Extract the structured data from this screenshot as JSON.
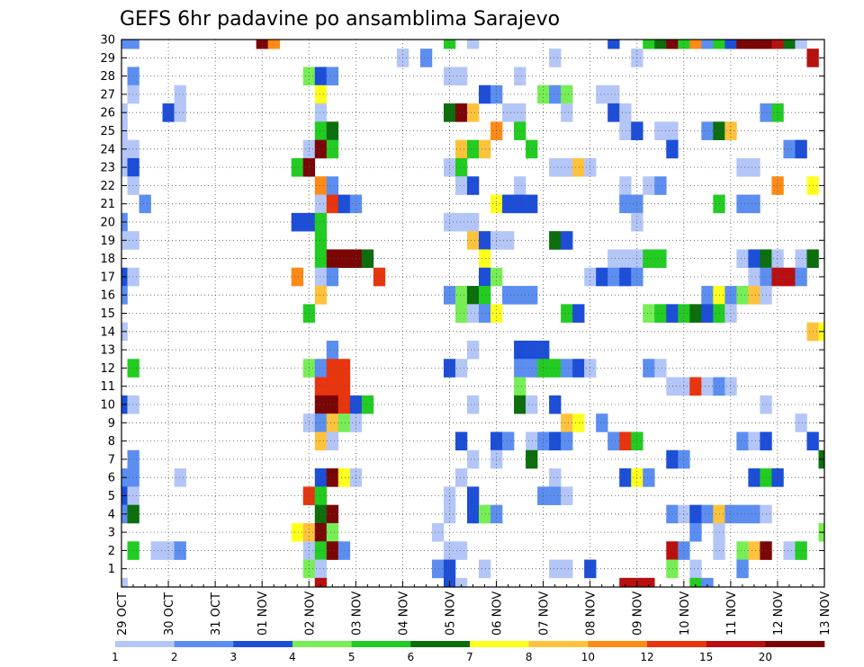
{
  "chart_data": {
    "type": "heatmap",
    "title": "GEFS 6hr padavine po ansamblima Sarajevo",
    "xlabel": "",
    "ylabel": "",
    "x_ticks": [
      "29 OCT",
      "30 OCT",
      "31 OCT",
      "01 NOV",
      "02 NOV",
      "03 NOV",
      "04 NOV",
      "05 NOV",
      "06 NOV",
      "07 NOV",
      "08 NOV",
      "09 NOV",
      "10 NOV",
      "11 NOV",
      "12 NOV",
      "13 NOV"
    ],
    "y_ticks": [
      "1",
      "2",
      "3",
      "4",
      "5",
      "6",
      "7",
      "8",
      "9",
      "10",
      "11",
      "12",
      "13",
      "14",
      "15",
      "16",
      "17",
      "18",
      "19",
      "20",
      "21",
      "22",
      "23",
      "24",
      "25",
      "26",
      "27",
      "28",
      "29",
      "30"
    ],
    "x_range": [
      "29 OCT 00Z",
      "13 NOV 00Z"
    ],
    "y_range": [
      0,
      30
    ],
    "time_step_hours": 6,
    "grid": true,
    "colorbar": {
      "labels": [
        "1",
        "2",
        "3",
        "4",
        "5",
        "6",
        "7",
        "8",
        "10",
        "12",
        "15",
        "20"
      ],
      "colors": [
        "#b3c6f7",
        "#5b8ef0",
        "#1c4ed8",
        "#77ee55",
        "#22cc22",
        "#0c6e0c",
        "#ffff1e",
        "#ffc23c",
        "#ff8a16",
        "#e8350e",
        "#b81010",
        "#7a0505"
      ]
    },
    "cells": [
      [
        0,
        30,
        2
      ],
      [
        1,
        30,
        2
      ],
      [
        12,
        30,
        12
      ],
      [
        13,
        30,
        9
      ],
      [
        28,
        30,
        5
      ],
      [
        30,
        30,
        1
      ],
      [
        42,
        30,
        3
      ],
      [
        45,
        30,
        5
      ],
      [
        46,
        30,
        6
      ],
      [
        47,
        30,
        12
      ],
      [
        48,
        30,
        5
      ],
      [
        49,
        30,
        9
      ],
      [
        50,
        30,
        2
      ],
      [
        51,
        30,
        5
      ],
      [
        52,
        30,
        3
      ],
      [
        53,
        30,
        12
      ],
      [
        54,
        30,
        12
      ],
      [
        55,
        30,
        12
      ],
      [
        56,
        30,
        11
      ],
      [
        57,
        30,
        6
      ],
      [
        58,
        30,
        1
      ],
      [
        24,
        29,
        1
      ],
      [
        26,
        29,
        2
      ],
      [
        37,
        29,
        1
      ],
      [
        44,
        29,
        1
      ],
      [
        59,
        29,
        11
      ],
      [
        1,
        28,
        2
      ],
      [
        16,
        28,
        4
      ],
      [
        17,
        28,
        3
      ],
      [
        18,
        28,
        2
      ],
      [
        28,
        28,
        1
      ],
      [
        29,
        28,
        1
      ],
      [
        34,
        28,
        1
      ],
      [
        1,
        27,
        1
      ],
      [
        5,
        27,
        1
      ],
      [
        17,
        27,
        7
      ],
      [
        31,
        27,
        3
      ],
      [
        32,
        27,
        2
      ],
      [
        36,
        27,
        4
      ],
      [
        37,
        27,
        2
      ],
      [
        38,
        27,
        4
      ],
      [
        41,
        27,
        1
      ],
      [
        42,
        27,
        1
      ],
      [
        0,
        26,
        1
      ],
      [
        4,
        26,
        3
      ],
      [
        5,
        26,
        1
      ],
      [
        17,
        26,
        1
      ],
      [
        28,
        26,
        6
      ],
      [
        29,
        26,
        12
      ],
      [
        30,
        26,
        8
      ],
      [
        33,
        26,
        1
      ],
      [
        34,
        26,
        1
      ],
      [
        38,
        26,
        1
      ],
      [
        42,
        26,
        3
      ],
      [
        43,
        26,
        1
      ],
      [
        55,
        26,
        2
      ],
      [
        56,
        26,
        5
      ],
      [
        0,
        25,
        1
      ],
      [
        17,
        25,
        5
      ],
      [
        18,
        25,
        6
      ],
      [
        32,
        25,
        9
      ],
      [
        34,
        25,
        5
      ],
      [
        43,
        25,
        1
      ],
      [
        44,
        25,
        3
      ],
      [
        46,
        25,
        1
      ],
      [
        47,
        25,
        1
      ],
      [
        50,
        25,
        2
      ],
      [
        51,
        25,
        6
      ],
      [
        52,
        25,
        8
      ],
      [
        0,
        24,
        1
      ],
      [
        1,
        24,
        1
      ],
      [
        16,
        24,
        1
      ],
      [
        17,
        24,
        12
      ],
      [
        18,
        24,
        5
      ],
      [
        29,
        24,
        8
      ],
      [
        30,
        24,
        5
      ],
      [
        31,
        24,
        8
      ],
      [
        35,
        24,
        5
      ],
      [
        47,
        24,
        3
      ],
      [
        57,
        24,
        2
      ],
      [
        58,
        24,
        3
      ],
      [
        0,
        23,
        1
      ],
      [
        1,
        23,
        3
      ],
      [
        15,
        23,
        5
      ],
      [
        16,
        23,
        12
      ],
      [
        28,
        23,
        1
      ],
      [
        29,
        23,
        5
      ],
      [
        37,
        23,
        1
      ],
      [
        38,
        23,
        1
      ],
      [
        39,
        23,
        8
      ],
      [
        40,
        23,
        1
      ],
      [
        53,
        23,
        1
      ],
      [
        54,
        23,
        1
      ],
      [
        1,
        22,
        1
      ],
      [
        17,
        22,
        9
      ],
      [
        18,
        22,
        2
      ],
      [
        29,
        22,
        1
      ],
      [
        30,
        22,
        3
      ],
      [
        34,
        22,
        1
      ],
      [
        43,
        22,
        1
      ],
      [
        45,
        22,
        1
      ],
      [
        46,
        22,
        2
      ],
      [
        56,
        22,
        9
      ],
      [
        59,
        22,
        7
      ],
      [
        2,
        21,
        2
      ],
      [
        17,
        21,
        1
      ],
      [
        18,
        21,
        10
      ],
      [
        19,
        21,
        3
      ],
      [
        20,
        21,
        2
      ],
      [
        32,
        21,
        7
      ],
      [
        33,
        21,
        3
      ],
      [
        34,
        21,
        3
      ],
      [
        35,
        21,
        3
      ],
      [
        43,
        21,
        2
      ],
      [
        44,
        21,
        2
      ],
      [
        51,
        21,
        5
      ],
      [
        53,
        21,
        2
      ],
      [
        54,
        21,
        2
      ],
      [
        0,
        20,
        2
      ],
      [
        15,
        20,
        3
      ],
      [
        16,
        20,
        3
      ],
      [
        17,
        20,
        5
      ],
      [
        28,
        20,
        1
      ],
      [
        29,
        20,
        1
      ],
      [
        30,
        20,
        1
      ],
      [
        44,
        20,
        1
      ],
      [
        0,
        19,
        1
      ],
      [
        1,
        19,
        1
      ],
      [
        17,
        19,
        5
      ],
      [
        30,
        19,
        8
      ],
      [
        31,
        19,
        3
      ],
      [
        32,
        19,
        1
      ],
      [
        33,
        19,
        1
      ],
      [
        37,
        19,
        6
      ],
      [
        38,
        19,
        3
      ],
      [
        17,
        18,
        5
      ],
      [
        18,
        18,
        12
      ],
      [
        19,
        18,
        12
      ],
      [
        20,
        18,
        12
      ],
      [
        21,
        18,
        6
      ],
      [
        31,
        18,
        7
      ],
      [
        42,
        18,
        1
      ],
      [
        43,
        18,
        1
      ],
      [
        44,
        18,
        1
      ],
      [
        45,
        18,
        5
      ],
      [
        46,
        18,
        5
      ],
      [
        53,
        18,
        1
      ],
      [
        54,
        18,
        3
      ],
      [
        55,
        18,
        6
      ],
      [
        56,
        18,
        1
      ],
      [
        58,
        18,
        1
      ],
      [
        59,
        18,
        6
      ],
      [
        0,
        17,
        3
      ],
      [
        1,
        17,
        1
      ],
      [
        15,
        17,
        9
      ],
      [
        17,
        17,
        1
      ],
      [
        18,
        17,
        2
      ],
      [
        22,
        17,
        10
      ],
      [
        31,
        17,
        3
      ],
      [
        32,
        17,
        4
      ],
      [
        40,
        17,
        1
      ],
      [
        41,
        17,
        3
      ],
      [
        42,
        17,
        2
      ],
      [
        43,
        17,
        3
      ],
      [
        44,
        17,
        2
      ],
      [
        54,
        17,
        1
      ],
      [
        55,
        17,
        2
      ],
      [
        56,
        17,
        11
      ],
      [
        57,
        17,
        11
      ],
      [
        58,
        17,
        2
      ],
      [
        0,
        16,
        2
      ],
      [
        17,
        16,
        8
      ],
      [
        28,
        16,
        2
      ],
      [
        29,
        16,
        4
      ],
      [
        30,
        16,
        6
      ],
      [
        31,
        16,
        5
      ],
      [
        33,
        16,
        2
      ],
      [
        34,
        16,
        2
      ],
      [
        35,
        16,
        2
      ],
      [
        50,
        16,
        2
      ],
      [
        51,
        16,
        7
      ],
      [
        52,
        16,
        2
      ],
      [
        53,
        16,
        4
      ],
      [
        54,
        16,
        8
      ],
      [
        55,
        16,
        1
      ],
      [
        16,
        15,
        5
      ],
      [
        29,
        15,
        4
      ],
      [
        30,
        15,
        1
      ],
      [
        31,
        15,
        2
      ],
      [
        32,
        15,
        7
      ],
      [
        38,
        15,
        5
      ],
      [
        39,
        15,
        3
      ],
      [
        45,
        15,
        4
      ],
      [
        46,
        15,
        5
      ],
      [
        47,
        15,
        3
      ],
      [
        48,
        15,
        5
      ],
      [
        49,
        15,
        6
      ],
      [
        50,
        15,
        3
      ],
      [
        51,
        15,
        5
      ],
      [
        52,
        15,
        1
      ],
      [
        0,
        14,
        1
      ],
      [
        59,
        14,
        8
      ],
      [
        60,
        14,
        7
      ],
      [
        18,
        13,
        2
      ],
      [
        30,
        13,
        1
      ],
      [
        34,
        13,
        3
      ],
      [
        35,
        13,
        3
      ],
      [
        36,
        13,
        3
      ],
      [
        1,
        12,
        5
      ],
      [
        16,
        12,
        4
      ],
      [
        17,
        12,
        2
      ],
      [
        18,
        12,
        10
      ],
      [
        19,
        12,
        10
      ],
      [
        28,
        12,
        3
      ],
      [
        29,
        12,
        1
      ],
      [
        34,
        12,
        2
      ],
      [
        35,
        12,
        2
      ],
      [
        36,
        12,
        5
      ],
      [
        37,
        12,
        5
      ],
      [
        38,
        12,
        2
      ],
      [
        39,
        12,
        3
      ],
      [
        40,
        12,
        1
      ],
      [
        45,
        12,
        2
      ],
      [
        46,
        12,
        1
      ],
      [
        17,
        11,
        10
      ],
      [
        18,
        11,
        10
      ],
      [
        19,
        11,
        10
      ],
      [
        34,
        11,
        4
      ],
      [
        47,
        11,
        1
      ],
      [
        48,
        11,
        1
      ],
      [
        49,
        11,
        10
      ],
      [
        50,
        11,
        1
      ],
      [
        51,
        11,
        2
      ],
      [
        52,
        11,
        1
      ],
      [
        0,
        10,
        3
      ],
      [
        1,
        10,
        1
      ],
      [
        17,
        10,
        12
      ],
      [
        18,
        10,
        12
      ],
      [
        19,
        10,
        10
      ],
      [
        20,
        10,
        3
      ],
      [
        21,
        10,
        5
      ],
      [
        30,
        10,
        1
      ],
      [
        34,
        10,
        6
      ],
      [
        35,
        10,
        1
      ],
      [
        37,
        10,
        3
      ],
      [
        55,
        10,
        1
      ],
      [
        16,
        9,
        1
      ],
      [
        17,
        9,
        2
      ],
      [
        18,
        9,
        8
      ],
      [
        19,
        9,
        4
      ],
      [
        20,
        9,
        1
      ],
      [
        38,
        9,
        8
      ],
      [
        39,
        9,
        7
      ],
      [
        41,
        9,
        2
      ],
      [
        58,
        9,
        1
      ],
      [
        17,
        8,
        8
      ],
      [
        18,
        8,
        1
      ],
      [
        29,
        8,
        3
      ],
      [
        32,
        8,
        3
      ],
      [
        33,
        8,
        2
      ],
      [
        35,
        8,
        1
      ],
      [
        36,
        8,
        2
      ],
      [
        37,
        8,
        3
      ],
      [
        38,
        8,
        2
      ],
      [
        42,
        8,
        2
      ],
      [
        43,
        8,
        10
      ],
      [
        44,
        8,
        5
      ],
      [
        53,
        8,
        2
      ],
      [
        54,
        8,
        1
      ],
      [
        55,
        8,
        3
      ],
      [
        59,
        8,
        3
      ],
      [
        1,
        7,
        2
      ],
      [
        30,
        7,
        1
      ],
      [
        32,
        7,
        1
      ],
      [
        35,
        7,
        6
      ],
      [
        47,
        7,
        3
      ],
      [
        48,
        7,
        2
      ],
      [
        60,
        7,
        6
      ],
      [
        0,
        6,
        2
      ],
      [
        1,
        6,
        2
      ],
      [
        5,
        6,
        1
      ],
      [
        17,
        6,
        3
      ],
      [
        18,
        6,
        12
      ],
      [
        19,
        6,
        7
      ],
      [
        20,
        6,
        1
      ],
      [
        29,
        6,
        1
      ],
      [
        37,
        6,
        1
      ],
      [
        43,
        6,
        3
      ],
      [
        44,
        6,
        7
      ],
      [
        45,
        6,
        2
      ],
      [
        54,
        6,
        3
      ],
      [
        55,
        6,
        5
      ],
      [
        56,
        6,
        3
      ],
      [
        0,
        5,
        3
      ],
      [
        1,
        5,
        1
      ],
      [
        16,
        5,
        10
      ],
      [
        17,
        5,
        5
      ],
      [
        28,
        5,
        1
      ],
      [
        30,
        5,
        3
      ],
      [
        36,
        5,
        2
      ],
      [
        37,
        5,
        2
      ],
      [
        38,
        5,
        1
      ],
      [
        0,
        4,
        2
      ],
      [
        1,
        4,
        6
      ],
      [
        17,
        4,
        6
      ],
      [
        18,
        4,
        12
      ],
      [
        28,
        4,
        1
      ],
      [
        30,
        4,
        3
      ],
      [
        31,
        4,
        4
      ],
      [
        32,
        4,
        2
      ],
      [
        47,
        4,
        2
      ],
      [
        48,
        4,
        1
      ],
      [
        49,
        4,
        3
      ],
      [
        50,
        4,
        2
      ],
      [
        51,
        4,
        8
      ],
      [
        52,
        4,
        2
      ],
      [
        53,
        4,
        2
      ],
      [
        54,
        4,
        2
      ],
      [
        55,
        4,
        1
      ],
      [
        15,
        3,
        7
      ],
      [
        16,
        3,
        8
      ],
      [
        17,
        3,
        12
      ],
      [
        18,
        3,
        4
      ],
      [
        27,
        3,
        1
      ],
      [
        49,
        3,
        2
      ],
      [
        51,
        3,
        1
      ],
      [
        60,
        3,
        4
      ],
      [
        1,
        2,
        5
      ],
      [
        3,
        2,
        1
      ],
      [
        4,
        2,
        1
      ],
      [
        5,
        2,
        2
      ],
      [
        16,
        2,
        1
      ],
      [
        17,
        2,
        5
      ],
      [
        18,
        2,
        12
      ],
      [
        19,
        2,
        2
      ],
      [
        28,
        2,
        1
      ],
      [
        29,
        2,
        1
      ],
      [
        47,
        2,
        11
      ],
      [
        48,
        2,
        2
      ],
      [
        51,
        2,
        1
      ],
      [
        53,
        2,
        4
      ],
      [
        54,
        2,
        8
      ],
      [
        55,
        2,
        12
      ],
      [
        57,
        2,
        1
      ],
      [
        58,
        2,
        5
      ],
      [
        16,
        1,
        4
      ],
      [
        17,
        1,
        1
      ],
      [
        27,
        1,
        2
      ],
      [
        28,
        1,
        3
      ],
      [
        31,
        1,
        1
      ],
      [
        37,
        1,
        1
      ],
      [
        38,
        1,
        1
      ],
      [
        40,
        1,
        3
      ],
      [
        47,
        1,
        4
      ],
      [
        49,
        1,
        1
      ],
      [
        53,
        1,
        2
      ],
      [
        0,
        0,
        1
      ],
      [
        17,
        0,
        11
      ],
      [
        28,
        0,
        3
      ],
      [
        29,
        0,
        1
      ],
      [
        43,
        0,
        11
      ],
      [
        44,
        0,
        11
      ],
      [
        45,
        0,
        11
      ],
      [
        49,
        0,
        5
      ],
      [
        50,
        0,
        2
      ]
    ]
  }
}
